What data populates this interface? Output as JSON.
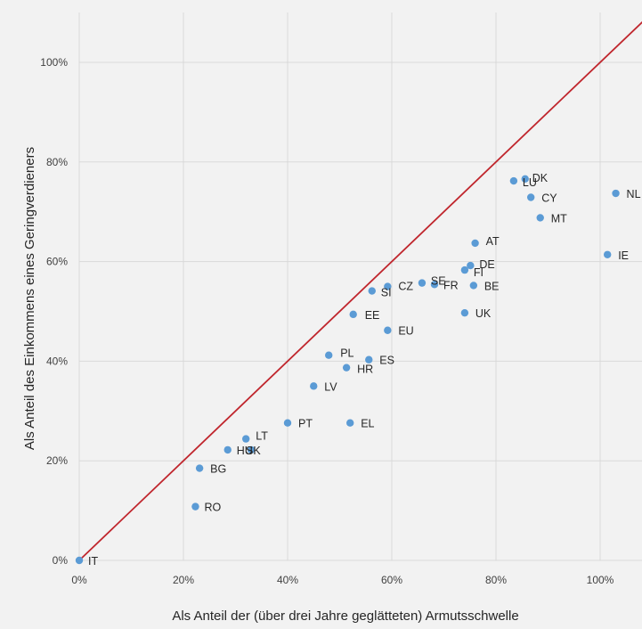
{
  "chart_data": {
    "type": "scatter",
    "title": "",
    "xlabel": "Als Anteil der (über drei Jahre geglätteten) Armutsschwelle",
    "ylabel": "Als Anteil des Einkommens eines Geringverdieners",
    "xlim": [
      0,
      108
    ],
    "ylim": [
      0,
      110
    ],
    "x_ticks": [
      0,
      20,
      40,
      60,
      80,
      100
    ],
    "x_tick_labels": [
      "0%",
      "20%",
      "40%",
      "60%",
      "80%",
      "100%"
    ],
    "y_ticks": [
      0,
      20,
      40,
      60,
      80,
      100
    ],
    "y_tick_labels": [
      "0%",
      "20%",
      "40%",
      "60%",
      "80%",
      "100%"
    ],
    "grid": true,
    "legend": "none",
    "reference_line": {
      "from": [
        0,
        0
      ],
      "to": [
        110,
        110
      ],
      "color": "#c0262d"
    },
    "point_color": "#5b9bd5",
    "points": [
      {
        "label": "IT",
        "x": 0.0,
        "y": 0.0
      },
      {
        "label": "RO",
        "x": 22.3,
        "y": 10.8
      },
      {
        "label": "BG",
        "x": 23.1,
        "y": 18.5
      },
      {
        "label": "HU",
        "x": 28.5,
        "y": 22.2
      },
      {
        "label": "SK",
        "x": 33.0,
        "y": 22.2
      },
      {
        "label": "LT",
        "x": 32.0,
        "y": 24.4
      },
      {
        "label": "PT",
        "x": 40.0,
        "y": 27.6
      },
      {
        "label": "EL",
        "x": 52.0,
        "y": 27.6
      },
      {
        "label": "LV",
        "x": 45.0,
        "y": 35.0
      },
      {
        "label": "HR",
        "x": 51.3,
        "y": 38.7
      },
      {
        "label": "PL",
        "x": 47.9,
        "y": 41.2
      },
      {
        "label": "ES",
        "x": 55.6,
        "y": 40.3
      },
      {
        "label": "EU",
        "x": 59.2,
        "y": 46.2
      },
      {
        "label": "EE",
        "x": 52.6,
        "y": 49.4
      },
      {
        "label": "SI",
        "x": 56.2,
        "y": 54.1
      },
      {
        "label": "CZ",
        "x": 59.2,
        "y": 55.0
      },
      {
        "label": "SE",
        "x": 65.8,
        "y": 55.7
      },
      {
        "label": "FR",
        "x": 68.2,
        "y": 55.4
      },
      {
        "label": "BE",
        "x": 75.7,
        "y": 55.2
      },
      {
        "label": "UK",
        "x": 74.0,
        "y": 49.7
      },
      {
        "label": "FI",
        "x": 74.0,
        "y": 58.3
      },
      {
        "label": "DE",
        "x": 75.1,
        "y": 59.2
      },
      {
        "label": "AT",
        "x": 76.0,
        "y": 63.7
      },
      {
        "label": "MT",
        "x": 88.5,
        "y": 68.8
      },
      {
        "label": "CY",
        "x": 86.7,
        "y": 72.9
      },
      {
        "label": "LU",
        "x": 83.4,
        "y": 76.2
      },
      {
        "label": "DK",
        "x": 85.6,
        "y": 76.6
      },
      {
        "label": "NL",
        "x": 103.0,
        "y": 73.7
      },
      {
        "label": "IE",
        "x": 101.4,
        "y": 61.4
      }
    ]
  }
}
